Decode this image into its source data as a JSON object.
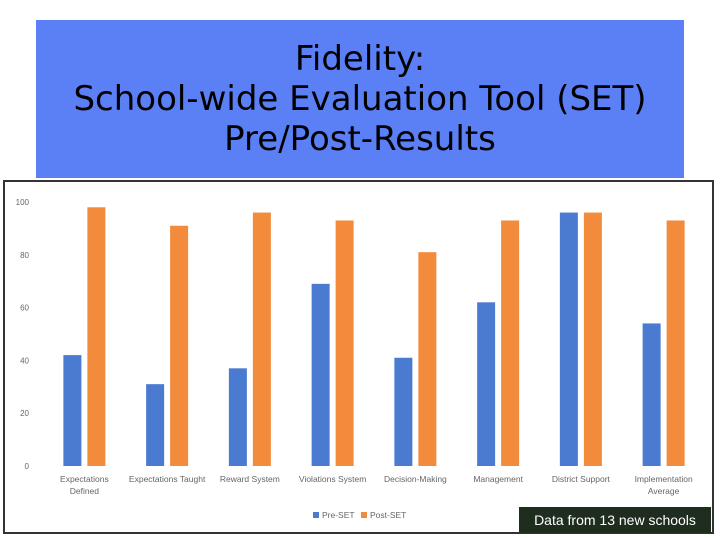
{
  "title": {
    "line1": "Fidelity:",
    "line2": "School-wide Evaluation Tool (SET)",
    "line3": "Pre/Post-Results"
  },
  "note": "Data from 13 new schools",
  "colors": {
    "title_background": "#5b7ff5",
    "pre": "#4a7bd0",
    "post": "#f28b3c",
    "note_background": "#1f2d1f"
  },
  "chart_data": {
    "type": "bar",
    "categories": [
      [
        "Expectations",
        "Defined"
      ],
      [
        "Expectations Taught"
      ],
      [
        "Reward System"
      ],
      [
        "Violations System"
      ],
      [
        "Decision-Making"
      ],
      [
        "Management"
      ],
      [
        "District Support"
      ],
      [
        "Implementation",
        "Average"
      ]
    ],
    "series": [
      {
        "name": "Pre-SET",
        "values": [
          42,
          31,
          37,
          69,
          41,
          62,
          96,
          54
        ]
      },
      {
        "name": "Post-SET",
        "values": [
          98,
          91,
          96,
          93,
          81,
          93,
          96,
          93
        ]
      }
    ],
    "ylim": [
      0,
      100
    ],
    "yticks": [
      0,
      20,
      40,
      60,
      80,
      100
    ],
    "grid": false,
    "legend_position": "bottom-center",
    "xlabel": "",
    "ylabel": ""
  }
}
